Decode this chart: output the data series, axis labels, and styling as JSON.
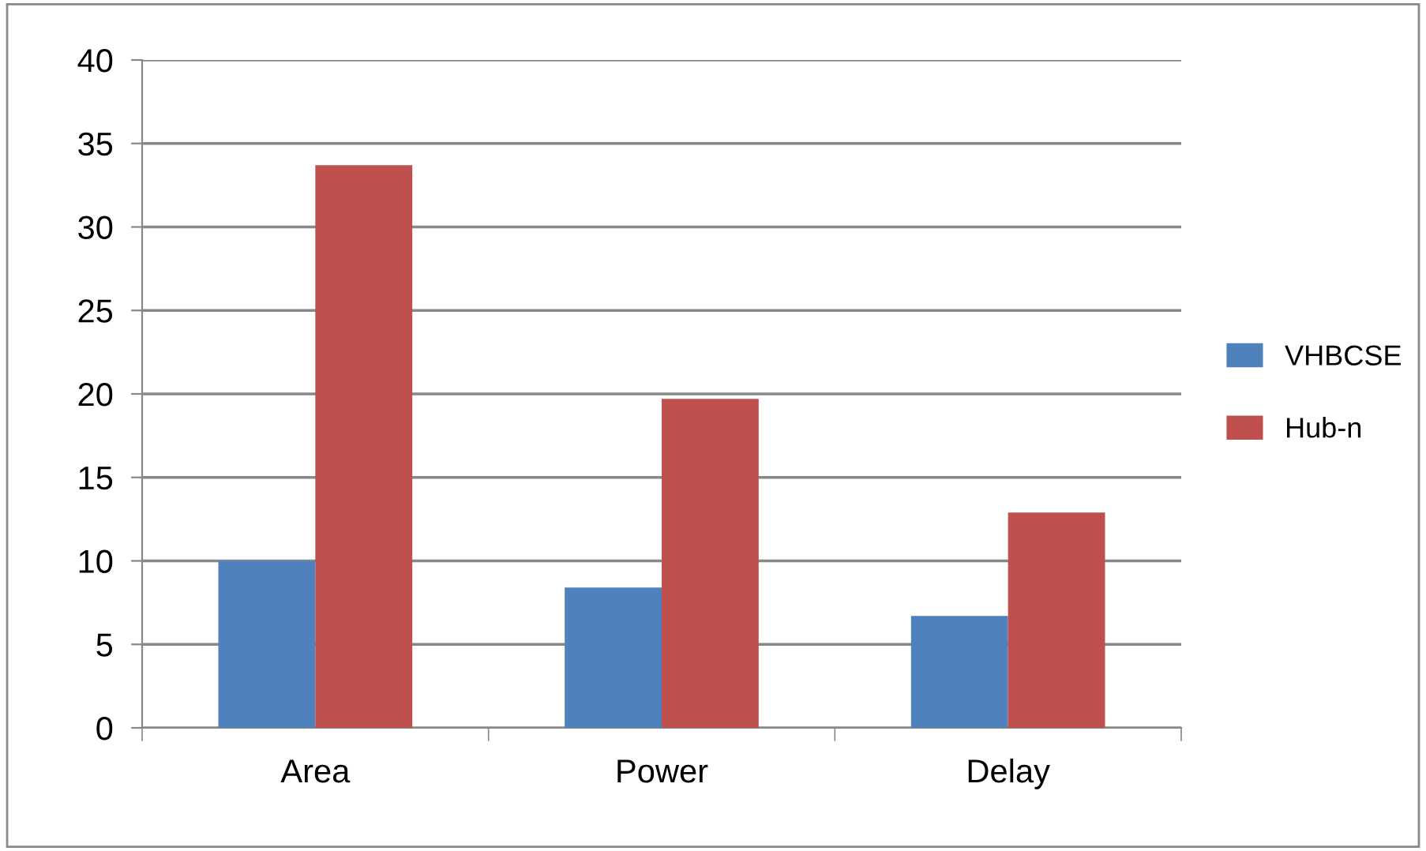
{
  "chart_data": {
    "type": "bar",
    "categories": [
      "Area",
      "Power",
      "Delay"
    ],
    "series": [
      {
        "name": "VHBCSE",
        "color": "#4f81bd",
        "values": [
          10,
          8.4,
          6.7
        ]
      },
      {
        "name": "Hub-n",
        "color": "#c0504d",
        "values": [
          33.7,
          19.7,
          12.9
        ]
      }
    ],
    "ylim": [
      0,
      40
    ],
    "yticks": [
      0,
      5,
      10,
      15,
      20,
      25,
      30,
      35,
      40
    ],
    "grid": "y",
    "legend": "right"
  }
}
